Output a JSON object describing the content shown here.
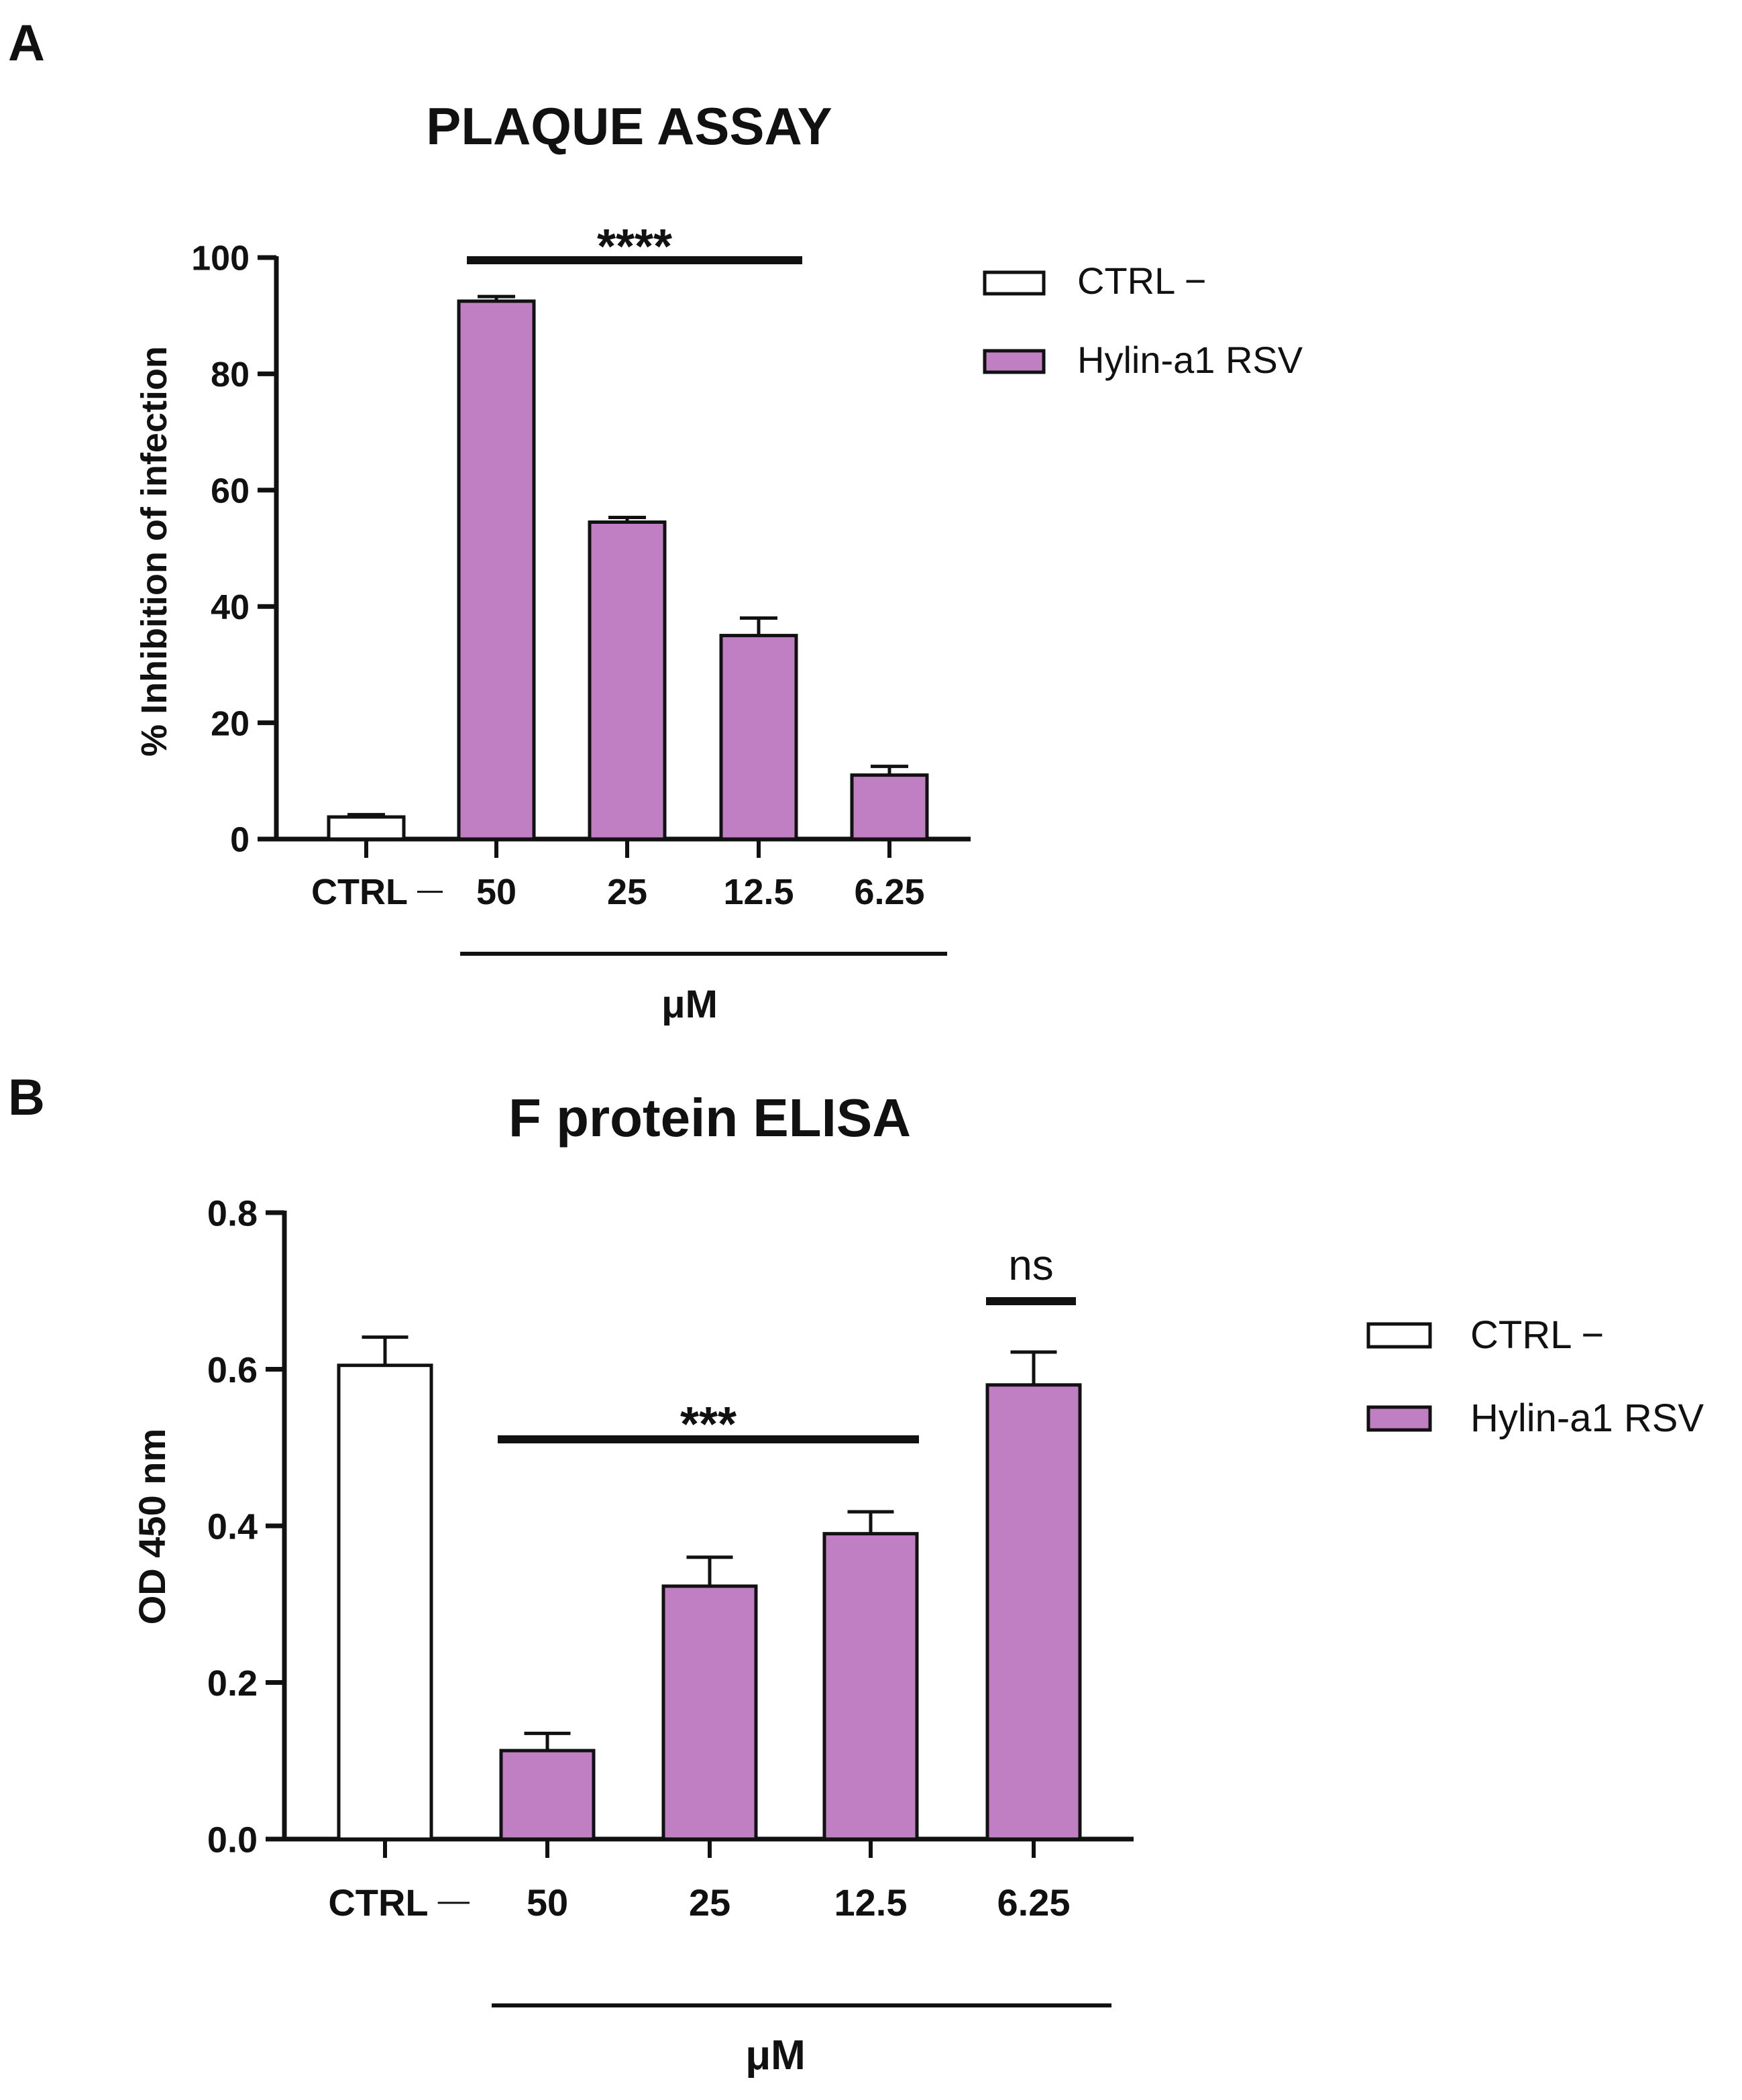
{
  "colors": {
    "ctrl_fill": "#ffffff",
    "hylin_fill": "#c17fc3",
    "stroke": "#111111"
  },
  "chart_data": [
    {
      "panel": "A",
      "type": "bar",
      "title": "PLAQUE ASSAY",
      "ylabel": "% Inhibition of infection",
      "xlabel": "μM",
      "ylim": [
        0,
        100
      ],
      "yticks": [
        0,
        20,
        40,
        60,
        80,
        100
      ],
      "ytick_labels": [
        "0",
        "20",
        "40",
        "60",
        "80",
        "100"
      ],
      "categories": [
        "CTRL –",
        "50",
        "25",
        "12.5",
        "6.25"
      ],
      "series": [
        {
          "name": "CTRL –",
          "legend": "CTRL −",
          "indices": [
            0
          ],
          "color": "#ffffff"
        },
        {
          "name": "Hylin-a1 RSV",
          "legend": "Hylin-a1 RSV",
          "indices": [
            1,
            2,
            3,
            4
          ],
          "color": "#c17fc3"
        }
      ],
      "values": [
        3.8,
        92.5,
        54.5,
        35,
        11
      ],
      "errors": [
        0.4,
        0.8,
        0.8,
        3,
        1.5
      ],
      "significance": [
        {
          "label": "****",
          "from": 1,
          "to": 3
        }
      ],
      "legend_position": "top-right"
    },
    {
      "panel": "B",
      "type": "bar",
      "title": "F protein ELISA",
      "ylabel": "OD 450 nm",
      "xlabel": "μM",
      "ylim": [
        0,
        0.8
      ],
      "yticks": [
        0,
        0.2,
        0.4,
        0.6,
        0.8
      ],
      "ytick_labels": [
        "0.0",
        "0.2",
        "0.4",
        "0.6",
        "0.8"
      ],
      "categories": [
        "CTRL –",
        "50",
        "25",
        "12.5",
        "6.25"
      ],
      "series": [
        {
          "name": "CTRL –",
          "legend": "CTRL −",
          "indices": [
            0
          ],
          "color": "#ffffff"
        },
        {
          "name": "Hylin-a1 RSV",
          "legend": "Hylin-a1 RSV",
          "indices": [
            1,
            2,
            3,
            4
          ],
          "color": "#c17fc3"
        }
      ],
      "values": [
        0.605,
        0.113,
        0.323,
        0.39,
        0.58
      ],
      "errors": [
        0.036,
        0.022,
        0.037,
        0.028,
        0.042
      ],
      "significance": [
        {
          "label": "***",
          "from": 1,
          "to": 3
        },
        {
          "label": "ns",
          "from": 4,
          "to": 4
        }
      ],
      "legend_position": "right"
    }
  ]
}
